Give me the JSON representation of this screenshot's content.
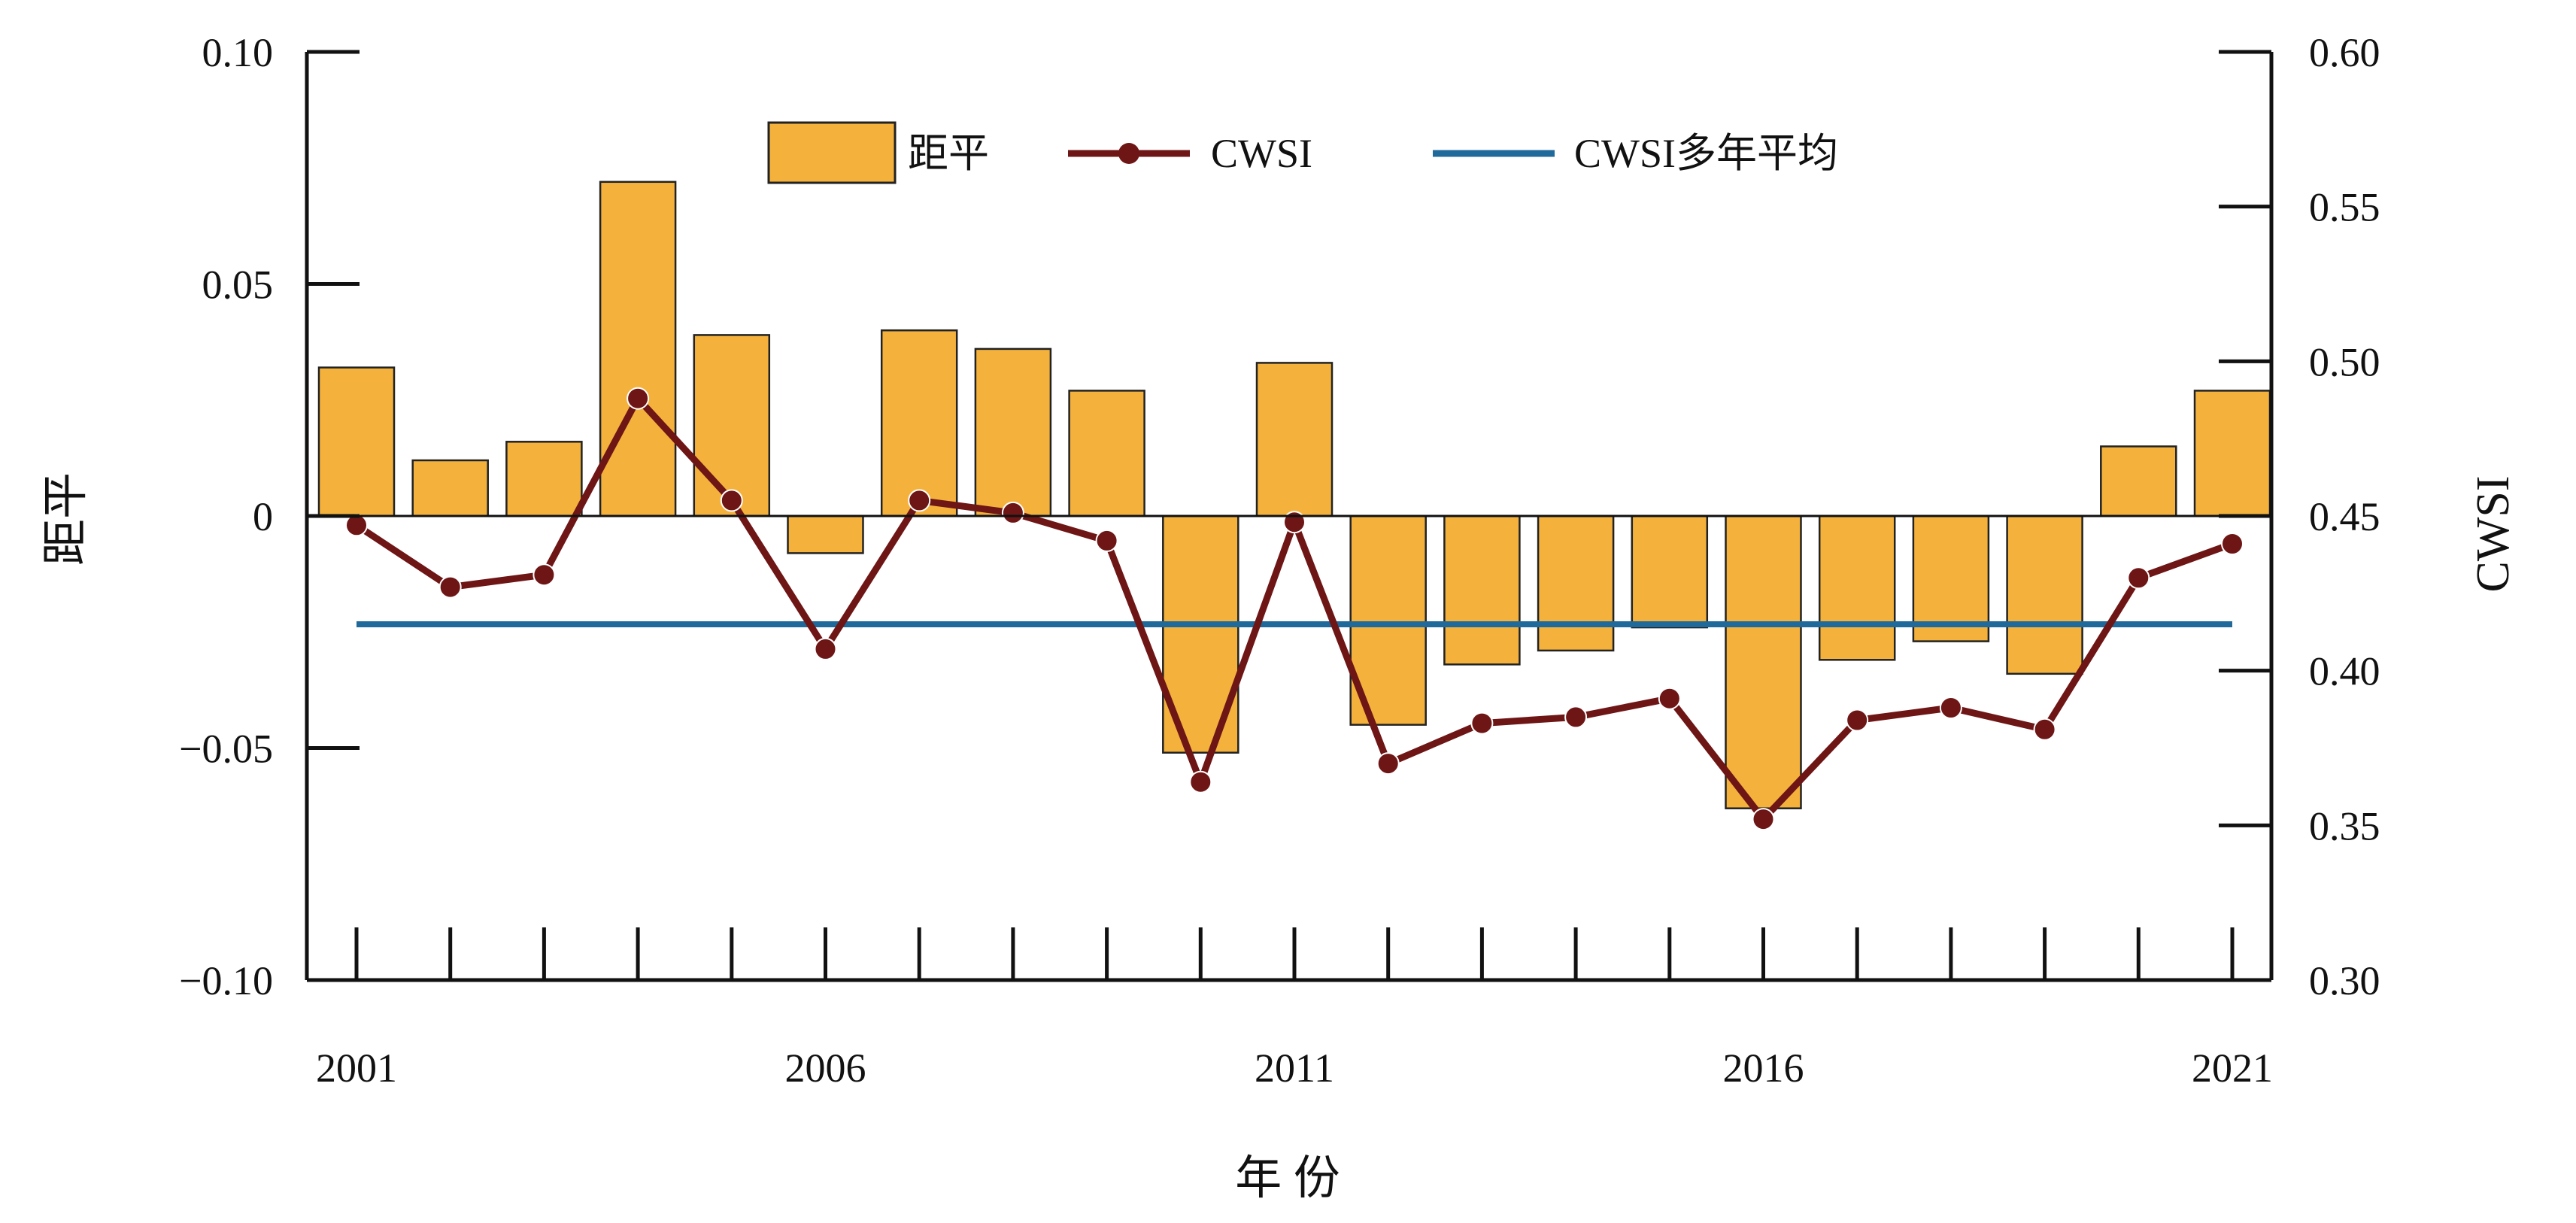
{
  "chart_data": {
    "type": "bar",
    "title": "",
    "xlabel": "年 份",
    "ylabel_left": "距平",
    "ylabel_right": "CWSI",
    "years": [
      2001,
      2002,
      2003,
      2004,
      2005,
      2006,
      2007,
      2008,
      2009,
      2010,
      2011,
      2012,
      2013,
      2014,
      2015,
      2016,
      2017,
      2018,
      2019,
      2020,
      2021
    ],
    "x_tick_labels": [
      "2001",
      "2006",
      "2011",
      "2016",
      "2021"
    ],
    "x_tick_years": [
      2001,
      2006,
      2011,
      2016,
      2021
    ],
    "left_axis": {
      "ylim": [
        -0.1,
        0.1
      ],
      "ticks": [
        0.1,
        0.05,
        0,
        -0.05,
        -0.1
      ],
      "tick_labels": [
        "0.10",
        "0.05",
        "0",
        "−0.05",
        "−0.10"
      ]
    },
    "right_axis": {
      "ylim": [
        0.3,
        0.6
      ],
      "ticks": [
        0.6,
        0.55,
        0.5,
        0.45,
        0.4,
        0.35,
        0.3
      ],
      "tick_labels": [
        "0.60",
        "0.55",
        "0.50",
        "0.45",
        "0.40",
        "0.35",
        "0.30"
      ]
    },
    "series": [
      {
        "name": "距平",
        "type": "bar",
        "axis": "left",
        "color": "#F4B23C",
        "values": [
          0.032,
          0.012,
          0.016,
          0.072,
          0.039,
          -0.008,
          0.04,
          0.036,
          0.027,
          -0.051,
          0.033,
          -0.045,
          -0.032,
          -0.029,
          -0.024,
          -0.063,
          -0.031,
          -0.027,
          -0.034,
          0.015,
          0.027
        ]
      },
      {
        "name": "CWSI",
        "type": "line",
        "axis": "right",
        "color": "#6E1515",
        "values": [
          0.447,
          0.427,
          0.431,
          0.488,
          0.455,
          0.407,
          0.455,
          0.451,
          0.442,
          0.364,
          0.448,
          0.37,
          0.383,
          0.385,
          0.391,
          0.352,
          0.384,
          0.388,
          0.381,
          0.43,
          0.441
        ]
      },
      {
        "name": "CWSI多年平均",
        "type": "hline",
        "axis": "right",
        "color": "#1F6A9A",
        "value": 0.415
      }
    ],
    "legend": {
      "placement": "top-center"
    },
    "grid": false
  }
}
